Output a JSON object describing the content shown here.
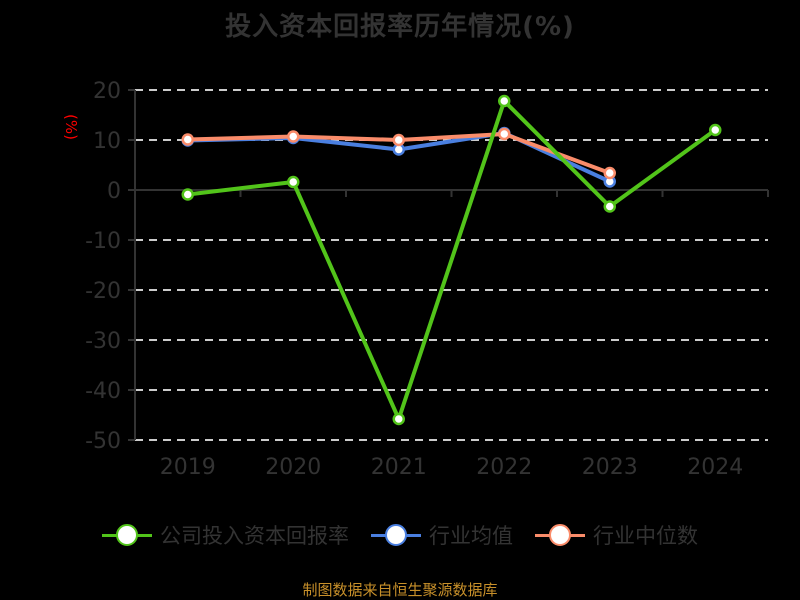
{
  "title": "投入资本回报率历年情况(%)",
  "y_unit_label": "(%)",
  "source": "制图数据来自恒生聚源数据库",
  "colors": {
    "company": "#52c41a",
    "industry_avg": "#4a7fe0",
    "industry_median": "#fa8c6a",
    "unit_label": "#ff0000",
    "axis": "#333333",
    "grid": "#cccccc",
    "source": "#c8902a"
  },
  "legend": [
    {
      "label": "公司投入资本回报率",
      "color": "#52c41a"
    },
    {
      "label": "行业均值",
      "color": "#4a7fe0"
    },
    {
      "label": "行业中位数",
      "color": "#fa8c6a"
    }
  ],
  "chart_data": {
    "type": "line",
    "title": "投入资本回报率历年情况(%)",
    "xlabel": "",
    "ylabel": "(%)",
    "categories": [
      "2019",
      "2020",
      "2021",
      "2022",
      "2023",
      "2024"
    ],
    "ylim": [
      -50,
      20
    ],
    "yticks": [
      20,
      10,
      0,
      -10,
      -20,
      -30,
      -40,
      -50
    ],
    "grid": true,
    "legend_position": "bottom",
    "series": [
      {
        "name": "公司投入资本回报率",
        "values": [
          -0.9,
          1.6,
          -45.8,
          17.8,
          -3.3,
          12.0
        ]
      },
      {
        "name": "行业均值",
        "values": [
          9.9,
          10.4,
          8.1,
          11.4,
          1.7,
          null
        ]
      },
      {
        "name": "行业中位数",
        "values": [
          10.1,
          10.7,
          10.0,
          11.2,
          3.4,
          null
        ]
      }
    ]
  }
}
